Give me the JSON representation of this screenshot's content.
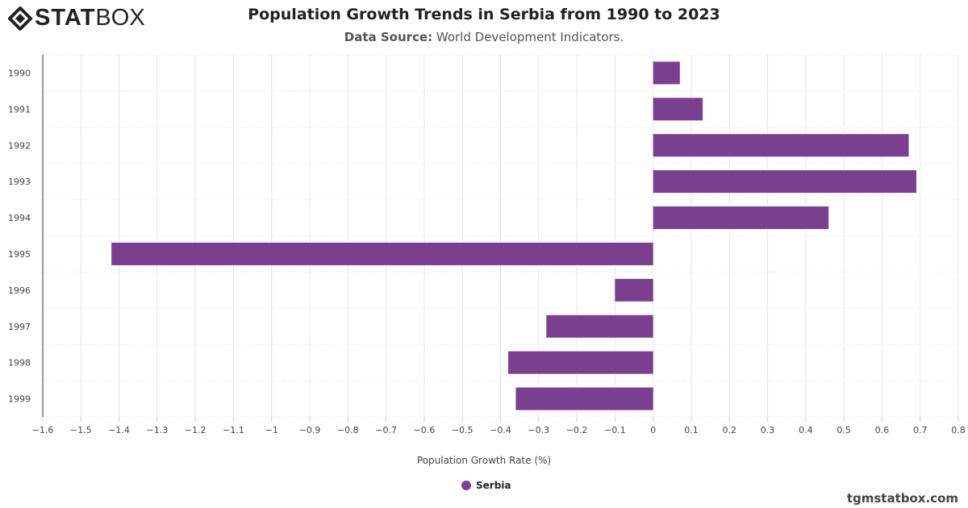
{
  "brand": {
    "logo_bold": "STAT",
    "logo_light": "BOX",
    "footer": "tgmstatbox.com"
  },
  "chart_data": {
    "type": "bar",
    "orientation": "horizontal",
    "title": "Population Growth Trends in Serbia from 1990 to 2023",
    "subtitle_label": "Data Source:",
    "subtitle_value": "World Development Indicators.",
    "xlabel": "Population Growth Rate (%)",
    "ylabel": "",
    "xlim": [
      -1.6,
      0.8
    ],
    "xticks": [
      "−1.6",
      "−1.5",
      "−1.4",
      "−1.3",
      "−1.2",
      "−1.1",
      "−1",
      "−0.9",
      "−0.8",
      "−0.7",
      "−0.6",
      "−0.5",
      "−0.4",
      "−0.3",
      "−0.2",
      "−0.1",
      "0",
      "0.1",
      "0.2",
      "0.3",
      "0.4",
      "0.5",
      "0.6",
      "0.7",
      "0.8"
    ],
    "categories": [
      "1990",
      "1991",
      "1992",
      "1993",
      "1994",
      "1995",
      "1996",
      "1997",
      "1998",
      "1999"
    ],
    "series": [
      {
        "name": "Serbia",
        "color": "#7b3f8f",
        "values": [
          0.07,
          0.13,
          0.67,
          0.69,
          0.46,
          -1.42,
          -0.1,
          -0.28,
          -0.38,
          -0.36
        ]
      }
    ],
    "grid": true,
    "legend": "bottom"
  }
}
